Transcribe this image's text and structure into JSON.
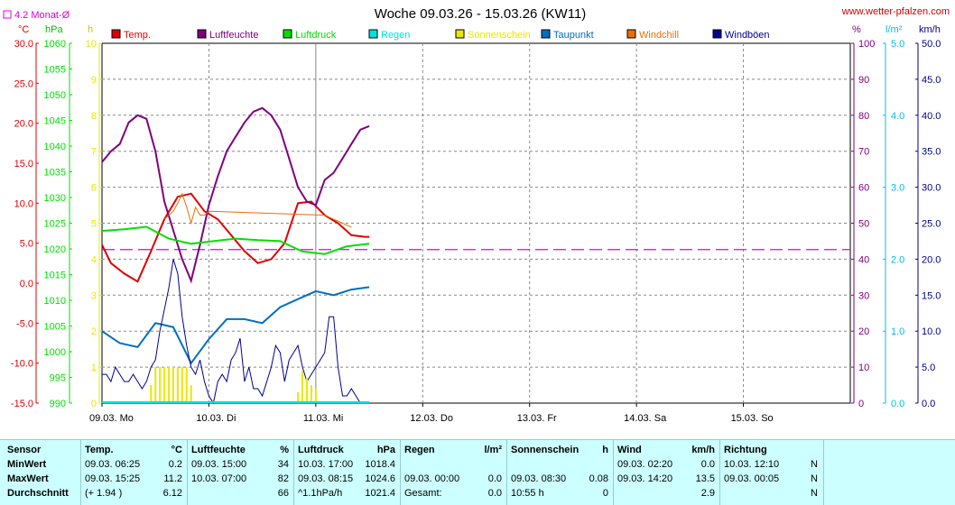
{
  "title": "Woche 09.03.26 - 15.03.26 (KW11)",
  "site": "www.wetter-pfalzen.com",
  "monthly_avg_label": "4.2 Monat-Ø",
  "units": {
    "temp": "°C",
    "hpa": "hPa",
    "hours": "h",
    "percent": "%",
    "rain": "l/m²",
    "wind": "km/h"
  },
  "legend": [
    {
      "label": "Temp.",
      "color": "#e00000"
    },
    {
      "label": "Luftfeuchte",
      "color": "#800080"
    },
    {
      "label": "Luftdruck",
      "color": "#00e000"
    },
    {
      "label": "Regen",
      "color": "#00e0e0"
    },
    {
      "label": "Sonnenschein",
      "color": "#e8e800"
    },
    {
      "label": "Taupunkt",
      "color": "#0070c0"
    },
    {
      "label": "Windchill",
      "color": "#e87000"
    },
    {
      "label": "Windböen",
      "color": "#000090"
    }
  ],
  "chart_data": {
    "type": "line",
    "x_ticks": [
      "09.03.  Mo",
      "10.03.  Di",
      "11.03.  Mi",
      "12.03.  Do",
      "13.03.  Fr",
      "14.03.  Sa",
      "15.03.  So"
    ],
    "axes": {
      "temp": {
        "ticks": [
          "30.0",
          "25.0",
          "20.0",
          "15.0",
          "10.0",
          "5.0",
          "0.0",
          "-5.0",
          "-10.0",
          "-15.0"
        ],
        "range": [
          -15,
          30
        ],
        "color": "#e00000"
      },
      "hpa": {
        "ticks": [
          "1060",
          "1055",
          "1050",
          "1045",
          "1040",
          "1035",
          "1030",
          "1025",
          "1020",
          "1015",
          "1010",
          "1005",
          "1000",
          "995",
          "990"
        ],
        "range": [
          990,
          1060
        ],
        "color": "#00e000"
      },
      "hours": {
        "ticks": [
          "10",
          "9",
          "8",
          "7",
          "6",
          "5",
          "4",
          "3",
          "2",
          "1",
          "0"
        ],
        "range": [
          0,
          10
        ],
        "color": "#e8e800"
      },
      "percent": {
        "ticks": [
          "100",
          "90",
          "80",
          "70",
          "60",
          "50",
          "40",
          "30",
          "20",
          "10",
          "0"
        ],
        "range": [
          0,
          100
        ],
        "color": "#800080"
      },
      "rain": {
        "ticks": [
          "5.0",
          "4.0",
          "3.0",
          "2.0",
          "1.0",
          "0.0"
        ],
        "range": [
          0,
          5
        ],
        "color": "#00c0e0"
      },
      "wind": {
        "ticks": [
          "50.0",
          "45.0",
          "40.0",
          "35.0",
          "30.0",
          "25.0",
          "20.0",
          "15.0",
          "10.0",
          "5.0",
          "0.0"
        ],
        "range": [
          0,
          50
        ],
        "color": "#000090"
      }
    },
    "monthly_avg_temp": 4.2,
    "series": [
      {
        "name": "Temp.",
        "axis": "temp",
        "x": [
          0,
          2,
          5,
          8,
          11,
          14,
          17,
          20,
          23,
          26,
          29,
          32,
          35,
          38,
          41,
          44,
          47,
          50,
          53,
          56,
          59,
          60
        ],
        "values": [
          4.8,
          2.5,
          1.2,
          0.2,
          4,
          8,
          10.8,
          11.2,
          9,
          8,
          6,
          4,
          2.5,
          3,
          5,
          10,
          10.2,
          8.5,
          7.5,
          6,
          5.8,
          5.8
        ]
      },
      {
        "name": "Luftfeuchte",
        "axis": "percent",
        "x": [
          0,
          2,
          4,
          6,
          8,
          10,
          12,
          14,
          16,
          18,
          20,
          22,
          24,
          26,
          28,
          30,
          32,
          34,
          36,
          38,
          40,
          42,
          44,
          46,
          48,
          50,
          52,
          54,
          56,
          58,
          60
        ],
        "values": [
          67,
          70,
          72,
          78,
          80,
          79,
          70,
          56,
          48,
          40,
          34,
          44,
          55,
          63,
          70,
          74,
          78,
          81,
          82,
          80,
          76,
          68,
          60,
          56,
          55,
          62,
          64,
          68,
          72,
          76,
          77
        ]
      },
      {
        "name": "Luftdruck",
        "axis": "hpa",
        "x": [
          0,
          5,
          10,
          15,
          20,
          25,
          30,
          35,
          40,
          45,
          50,
          55,
          60
        ],
        "values": [
          1023.5,
          1023.8,
          1024.3,
          1022,
          1021,
          1021.5,
          1022,
          1021.7,
          1021.5,
          1019.5,
          1019,
          1020.5,
          1021
        ]
      },
      {
        "name": "Taupunkt",
        "axis": "temp",
        "x": [
          0,
          4,
          8,
          12,
          16,
          20,
          24,
          28,
          32,
          36,
          40,
          44,
          48,
          52,
          56,
          60
        ],
        "values": [
          -6,
          -7.5,
          -8,
          -5,
          -5.5,
          -10,
          -7,
          -4.5,
          -4.5,
          -5,
          -3,
          -2,
          -1,
          -1.5,
          -0.8,
          -0.5
        ]
      },
      {
        "name": "Windchill",
        "axis": "temp",
        "x": [
          14,
          16,
          17,
          18,
          19,
          20,
          21,
          22,
          23,
          24,
          50,
          52,
          54,
          56
        ],
        "values": [
          8,
          9,
          10,
          11.2,
          9.5,
          7.5,
          9.5,
          8.5,
          8.5,
          9,
          8.5,
          8,
          7.5,
          7
        ]
      },
      {
        "name": "Windböen",
        "axis": "wind",
        "x": [
          0,
          1,
          2,
          3,
          4,
          5,
          6,
          7,
          8,
          9,
          10,
          11,
          12,
          13,
          14,
          15,
          16,
          17,
          18,
          19,
          20,
          21,
          22,
          23,
          24,
          25,
          26,
          27,
          28,
          29,
          30,
          31,
          32,
          33,
          34,
          35,
          36,
          37,
          38,
          39,
          40,
          41,
          42,
          43,
          44,
          45,
          46,
          47,
          48,
          49,
          50,
          51,
          52,
          53,
          54,
          55,
          56,
          57,
          58,
          59,
          60
        ],
        "values": [
          4,
          4,
          3,
          5,
          4,
          3,
          3,
          4,
          3,
          2,
          3,
          5,
          6,
          10,
          13,
          16,
          20,
          18,
          12,
          8,
          5,
          4,
          6,
          3,
          1,
          0,
          3,
          4,
          3,
          6,
          7,
          9,
          3,
          5,
          2,
          2,
          1,
          3,
          5,
          8,
          7,
          3,
          6,
          7,
          8,
          5,
          3,
          4,
          5,
          6,
          7,
          12,
          12,
          5,
          1,
          1,
          2,
          1,
          0,
          0,
          0
        ]
      },
      {
        "name": "Sonnenschein",
        "axis": "hours",
        "type": "bar",
        "x": [
          11,
          12,
          13,
          14,
          15,
          16,
          17,
          18,
          19,
          20,
          44,
          45,
          46,
          47,
          48
        ],
        "values": [
          0.5,
          1,
          1,
          1,
          1,
          1,
          1,
          1,
          1,
          0.5,
          0.3,
          0.9,
          0.7,
          0.5,
          0.4
        ]
      }
    ]
  },
  "stats": {
    "headers": [
      {
        "label": "Sensor",
        "unit": ""
      },
      {
        "label": "Temp.",
        "unit": "°C"
      },
      {
        "label": "Luftfeuchte",
        "unit": "%"
      },
      {
        "label": "Luftdruck",
        "unit": "hPa"
      },
      {
        "label": "Regen",
        "unit": "l/m²"
      },
      {
        "label": "Sonnenschein",
        "unit": "h"
      },
      {
        "label": "Wind",
        "unit": "km/h"
      },
      {
        "label": "Richtung",
        "unit": ""
      }
    ],
    "rows": [
      {
        "label": "MinWert",
        "cells": [
          [
            "09.03.  06:25",
            "0.2"
          ],
          [
            "09.03.  15:00",
            "34"
          ],
          [
            "10.03.  17:00",
            "1018.4"
          ],
          [
            "",
            ""
          ],
          [
            "",
            ""
          ],
          [
            "09.03.  02:20",
            "0.0"
          ],
          [
            "10.03.  12:10",
            "N"
          ]
        ]
      },
      {
        "label": "MaxWert",
        "cells": [
          [
            "09.03.  15:25",
            "11.2"
          ],
          [
            "10.03.  07:00",
            "82"
          ],
          [
            "09.03.  08:15",
            "1024.6"
          ],
          [
            "09.03.  00:00",
            "0.0"
          ],
          [
            "09.03.  08:30",
            "0.08"
          ],
          [
            "09.03.  14:20",
            "13.5"
          ],
          [
            "09.03.  00:05",
            "N"
          ]
        ]
      },
      {
        "label": "Durchschnitt",
        "cells": [
          [
            "(+ 1.94 )",
            "6.12"
          ],
          [
            "",
            "66"
          ],
          [
            "^1.1hPa/h",
            "1021.4"
          ],
          [
            "Gesamt:",
            "0.0"
          ],
          [
            "10:55 h",
            "0"
          ],
          [
            "",
            "2.9"
          ],
          [
            "",
            "N"
          ]
        ]
      }
    ]
  }
}
